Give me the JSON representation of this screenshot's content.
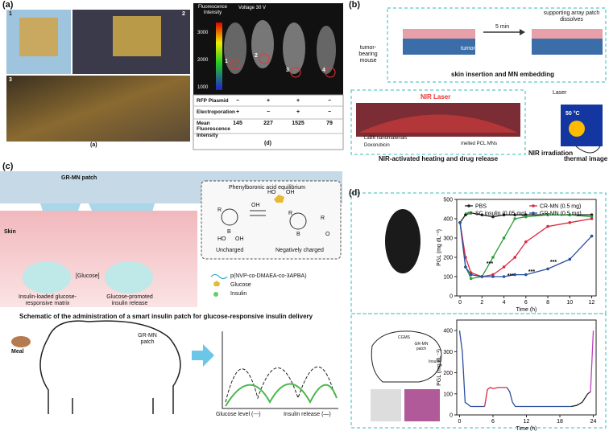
{
  "panel_a": {
    "label": "(a)",
    "photo_labels": [
      "1",
      "2",
      "3"
    ],
    "caption": "(a)"
  },
  "panel_a_d": {
    "colorbar_title": "Fluorescence Intensity",
    "colorbar_ticks": [
      3000,
      2000,
      1000
    ],
    "voltage": "Voltage 30 V",
    "mouse_labels": [
      "1",
      "2",
      "3",
      "4"
    ],
    "table": {
      "rows": [
        [
          "RFP Plasmid",
          "−",
          "+",
          "+",
          "−"
        ],
        [
          "Electroporation",
          "+",
          "−",
          "+",
          "−"
        ],
        [
          "Mean Fluorescence Intensity",
          145,
          227,
          1525,
          79
        ]
      ]
    },
    "caption": "(d)"
  },
  "panel_b": {
    "label": "(b)",
    "mouse": "tumor-bearing mouse",
    "tumor": "tumor",
    "time": "5 min",
    "dissolve": "supporting array patch dissolves",
    "step1": "skin insertion and MN embedding",
    "laser_box": "NIR Laser",
    "legend": [
      "LaB6 nanomaterials",
      "Doxorubicin"
    ],
    "melted": "melted PCL MNs",
    "step2": "NIR-activated heating and drug release",
    "irradiation": "NIR irradiation",
    "laser": "Laser",
    "temp": "50 °C",
    "thermal": "thermal image"
  },
  "panel_c": {
    "label": "(c)",
    "patch": "GR-MN patch",
    "skin": "Skin",
    "equilibrium": "Phenylboronic acid equilibrium",
    "chem": {
      "r": "R",
      "oh": "OH",
      "ho": "HO",
      "b": "B",
      "o": "O"
    },
    "uncharged": "Uncharged",
    "charged": "Negatively charged",
    "glucose_up": "[Glucose]",
    "matrix": "Insulin-loaded glucose-responsive matrix",
    "release": "Glucose-promoted insulin release",
    "legend": [
      "p(NVP-co-DMAEA-co-3APBA)",
      "Glucose",
      "Insulin"
    ],
    "schematic": "Schematic of the administration of a smart insulin patch for glucose-responsive insulin delivery",
    "meal": "Meal",
    "pig_patch": "GR-MN patch",
    "glucose_level": "Glucose level (---)",
    "insulin_release": "Insulin release (—)"
  },
  "panel_d": {
    "label": "(d)",
    "cgms": "CGMS",
    "pig_patch": "GR-MN patch",
    "insulin": "Insulin"
  },
  "chart_data": [
    {
      "type": "line",
      "xlabel": "Time (h)",
      "ylabel": "PGL (mg dL⁻¹)",
      "xlim": [
        -0.3,
        12.4
      ],
      "ylim": [
        0,
        500
      ],
      "xticks": [
        0,
        2,
        4,
        6,
        8,
        10,
        12
      ],
      "yticks": [
        0,
        100,
        200,
        300,
        400,
        500
      ],
      "markers": true,
      "legend": "top",
      "x": [
        0,
        0.5,
        1,
        2,
        3,
        4,
        5,
        6,
        8,
        10,
        12
      ],
      "series": [
        {
          "name": "PBS",
          "color": "#222222",
          "values": [
            380,
            420,
            430,
            420,
            410,
            420,
            420,
            420,
            420,
            420,
            420
          ]
        },
        {
          "name": "SC insulin (0.05 mg)",
          "color": "#2e9e3a",
          "values": [
            380,
            150,
            90,
            100,
            200,
            300,
            400,
            410,
            420,
            420,
            410
          ]
        },
        {
          "name": "CR-MN (0.5 mg)",
          "color": "#d9283e",
          "values": [
            380,
            200,
            120,
            100,
            110,
            150,
            200,
            280,
            360,
            380,
            400
          ]
        },
        {
          "name": "GR-MN (0.5 mg)",
          "color": "#2b4fa0",
          "values": [
            380,
            150,
            110,
            100,
            100,
            100,
            110,
            110,
            140,
            190,
            310
          ]
        }
      ],
      "annotations": [
        "***",
        "***",
        "***",
        "***"
      ]
    },
    {
      "type": "line",
      "xlabel": "Time (h)",
      "ylabel": "PGL (mg dL⁻¹)",
      "xlim": [
        -0.5,
        24.5
      ],
      "ylim": [
        0,
        450
      ],
      "xticks": [
        0,
        6,
        12,
        18,
        24
      ],
      "yticks": [
        0,
        100,
        200,
        300,
        400
      ],
      "markers": false,
      "series": [
        {
          "color": "#2b4fa0",
          "x": [
            0,
            0.5,
            1,
            2,
            4.5,
            null,
            8.5,
            9,
            9.5,
            10,
            20
          ],
          "values": [
            400,
            300,
            60,
            40,
            40,
            null,
            130,
            110,
            60,
            40,
            40
          ]
        },
        {
          "color": "#d9283e",
          "x": [
            4.5,
            5,
            5.5,
            6,
            7,
            8,
            8.5
          ],
          "values": [
            40,
            120,
            130,
            125,
            130,
            130,
            130
          ]
        },
        {
          "color": "#222222",
          "x": [
            20,
            21,
            22,
            22.5,
            23,
            23.5
          ],
          "values": [
            40,
            45,
            60,
            80,
            100,
            110
          ]
        },
        {
          "color": "#c040c0",
          "x": [
            23.5,
            24
          ],
          "values": [
            110,
            400
          ]
        }
      ]
    }
  ]
}
